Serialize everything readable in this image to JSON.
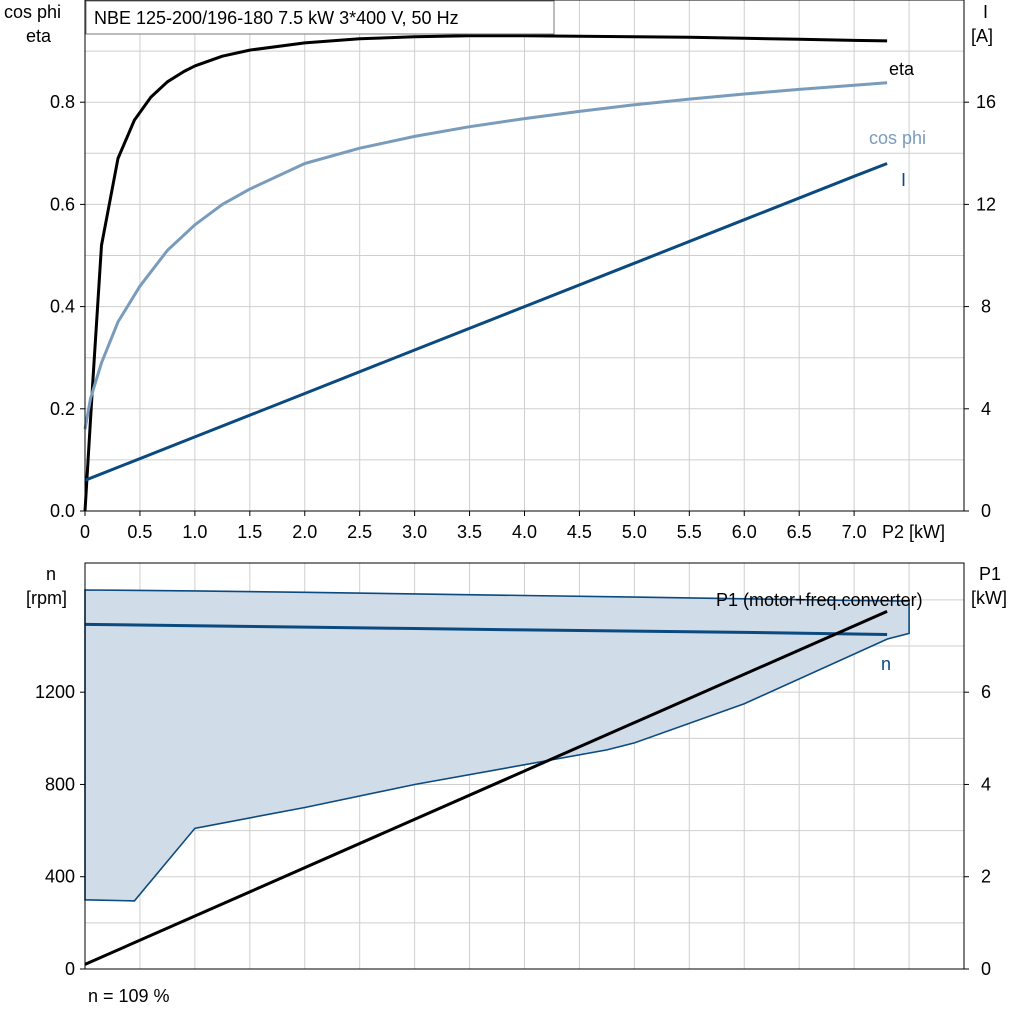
{
  "title": "NBE 125-200/196-180   7.5 kW   3*400 V, 50 Hz",
  "footer": "n = 109 %",
  "colors": {
    "eta": "#000000",
    "cos_phi": "#7a9cbc",
    "current": "#0b4a80",
    "speed": "#0b4a80",
    "p1": "#000000",
    "envelope_fill": "#d0dce8",
    "envelope_line": "#0b4a80"
  },
  "chart_data": [
    {
      "type": "line",
      "axis_labels": {
        "left_top": "cos phi",
        "left_bottom": "eta",
        "right_top": "I",
        "right_bottom": "[A]",
        "x": "P2 [kW]"
      },
      "x_ticks": [
        "0",
        "0.5",
        "1.0",
        "1.5",
        "2.0",
        "2.5",
        "3.0",
        "3.5",
        "4.0",
        "4.5",
        "5.0",
        "5.5",
        "6.0",
        "6.5",
        "7.0"
      ],
      "y_left_ticks": [
        "0.0",
        "0.2",
        "0.4",
        "0.6",
        "0.8"
      ],
      "y_right_ticks": [
        "0",
        "4",
        "8",
        "12",
        "16"
      ],
      "xlim": [
        0,
        8.0
      ],
      "ylim_left": [
        0,
        1.0
      ],
      "ylim_right": [
        0,
        20
      ],
      "grid": true,
      "series": [
        {
          "name": "eta",
          "axis": "left",
          "x": [
            0.0,
            0.07,
            0.15,
            0.3,
            0.45,
            0.6,
            0.75,
            0.9,
            1.0,
            1.25,
            1.5,
            2.0,
            2.5,
            3.0,
            3.5,
            4.0,
            4.5,
            5.0,
            5.5,
            6.0,
            6.5,
            7.0,
            7.3
          ],
          "y": [
            0.0,
            0.25,
            0.52,
            0.69,
            0.765,
            0.81,
            0.84,
            0.86,
            0.871,
            0.89,
            0.902,
            0.916,
            0.924,
            0.928,
            0.93,
            0.93,
            0.929,
            0.928,
            0.927,
            0.925,
            0.923,
            0.921,
            0.92
          ]
        },
        {
          "name": "cos phi",
          "axis": "left",
          "x": [
            0.0,
            0.05,
            0.15,
            0.3,
            0.5,
            0.75,
            1.0,
            1.25,
            1.5,
            2.0,
            2.5,
            3.0,
            3.5,
            4.0,
            4.5,
            5.0,
            5.5,
            6.0,
            6.5,
            7.0,
            7.3
          ],
          "y": [
            0.16,
            0.22,
            0.29,
            0.37,
            0.44,
            0.51,
            0.56,
            0.6,
            0.63,
            0.68,
            0.71,
            0.733,
            0.752,
            0.768,
            0.782,
            0.795,
            0.806,
            0.816,
            0.825,
            0.833,
            0.838
          ]
        },
        {
          "name": "I",
          "axis": "right",
          "x": [
            0.0,
            1.0,
            2.0,
            3.0,
            4.0,
            5.0,
            6.0,
            7.0,
            7.3
          ],
          "y": [
            1.2,
            2.9,
            4.6,
            6.3,
            8.0,
            9.7,
            11.4,
            13.1,
            13.6
          ]
        }
      ]
    },
    {
      "type": "line",
      "axis_labels": {
        "left_top": "n",
        "left_bottom": "[rpm]",
        "right_top": "P1",
        "right_bottom": "[kW]"
      },
      "y_left_ticks": [
        "0",
        "400",
        "800",
        "1200"
      ],
      "y_right_ticks": [
        "0",
        "2",
        "4",
        "6"
      ],
      "xlim": [
        0,
        8.0
      ],
      "ylim_left": [
        0,
        1760
      ],
      "ylim_right": [
        0,
        8.8
      ],
      "grid": true,
      "series": [
        {
          "name": "n",
          "axis": "left",
          "x": [
            0.0,
            1.0,
            2.0,
            3.0,
            4.0,
            5.0,
            6.0,
            7.0,
            7.3
          ],
          "y": [
            1494,
            1488,
            1482,
            1476,
            1470,
            1465,
            1459,
            1452,
            1450
          ]
        },
        {
          "name": "P1 (motor+freq.converter)",
          "axis": "right",
          "x": [
            0.0,
            7.3
          ],
          "y": [
            0.1,
            7.75
          ]
        },
        {
          "axis": "left",
          "x": [
            0.0,
            1.0,
            2.0,
            3.0,
            4.0,
            5.0,
            6.0,
            7.0,
            7.5,
            7.5,
            7.3,
            6.0,
            5.0,
            4.75,
            3.0,
            2.0,
            1.0,
            0.45,
            0.0,
            0.0
          ],
          "y": [
            1643,
            1639,
            1633,
            1626,
            1619,
            1612,
            1605,
            1598,
            1595,
            1455,
            1430,
            1150,
            980,
            950,
            800,
            700,
            610,
            295,
            300,
            1643
          ]
        }
      ]
    }
  ]
}
